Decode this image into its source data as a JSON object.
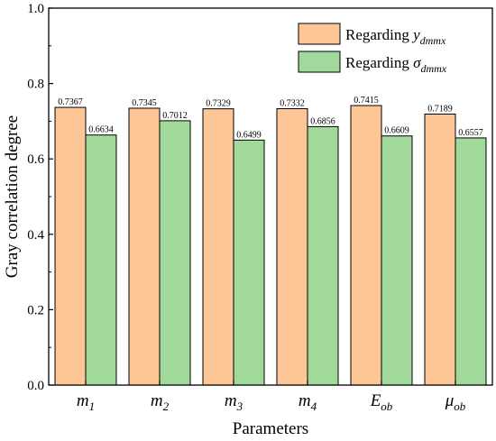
{
  "chart_data": {
    "type": "bar",
    "title": "",
    "xlabel": "Parameters",
    "ylabel": "Gray correlation degree",
    "ylim": [
      0,
      1.0
    ],
    "yticks": [
      "0.0",
      "0.2",
      "0.4",
      "0.6",
      "0.8",
      "1.0"
    ],
    "yticks_values": [
      0,
      0.2,
      0.4,
      0.6,
      0.8,
      1.0
    ],
    "categories": [
      {
        "base": "m",
        "sub": "1"
      },
      {
        "base": "m",
        "sub": "2"
      },
      {
        "base": "m",
        "sub": "3"
      },
      {
        "base": "m",
        "sub": "4"
      },
      {
        "base": "E",
        "sub": "ob"
      },
      {
        "base": "μ",
        "sub": "ob"
      }
    ],
    "series": [
      {
        "name_prefix": "Regarding",
        "name_symbol": "y",
        "name_sub": "dmmx",
        "color": "#FDC697",
        "values": [
          0.7367,
          0.7345,
          0.7329,
          0.7332,
          0.7415,
          0.7189
        ],
        "value_labels": [
          "0.7367",
          "0.7345",
          "0.7329",
          "0.7332",
          "0.7415",
          "0.7189"
        ]
      },
      {
        "name_prefix": "Regarding",
        "name_symbol": "σ",
        "name_sub": "dmmx",
        "color": "#A1D99B",
        "values": [
          0.6634,
          0.7012,
          0.6499,
          0.6856,
          0.6609,
          0.6557
        ],
        "value_labels": [
          "0.6634",
          "0.7012",
          "0.6499",
          "0.6856",
          "0.6609",
          "0.6557"
        ]
      }
    ],
    "legend_position": "top-right",
    "grid": false
  }
}
